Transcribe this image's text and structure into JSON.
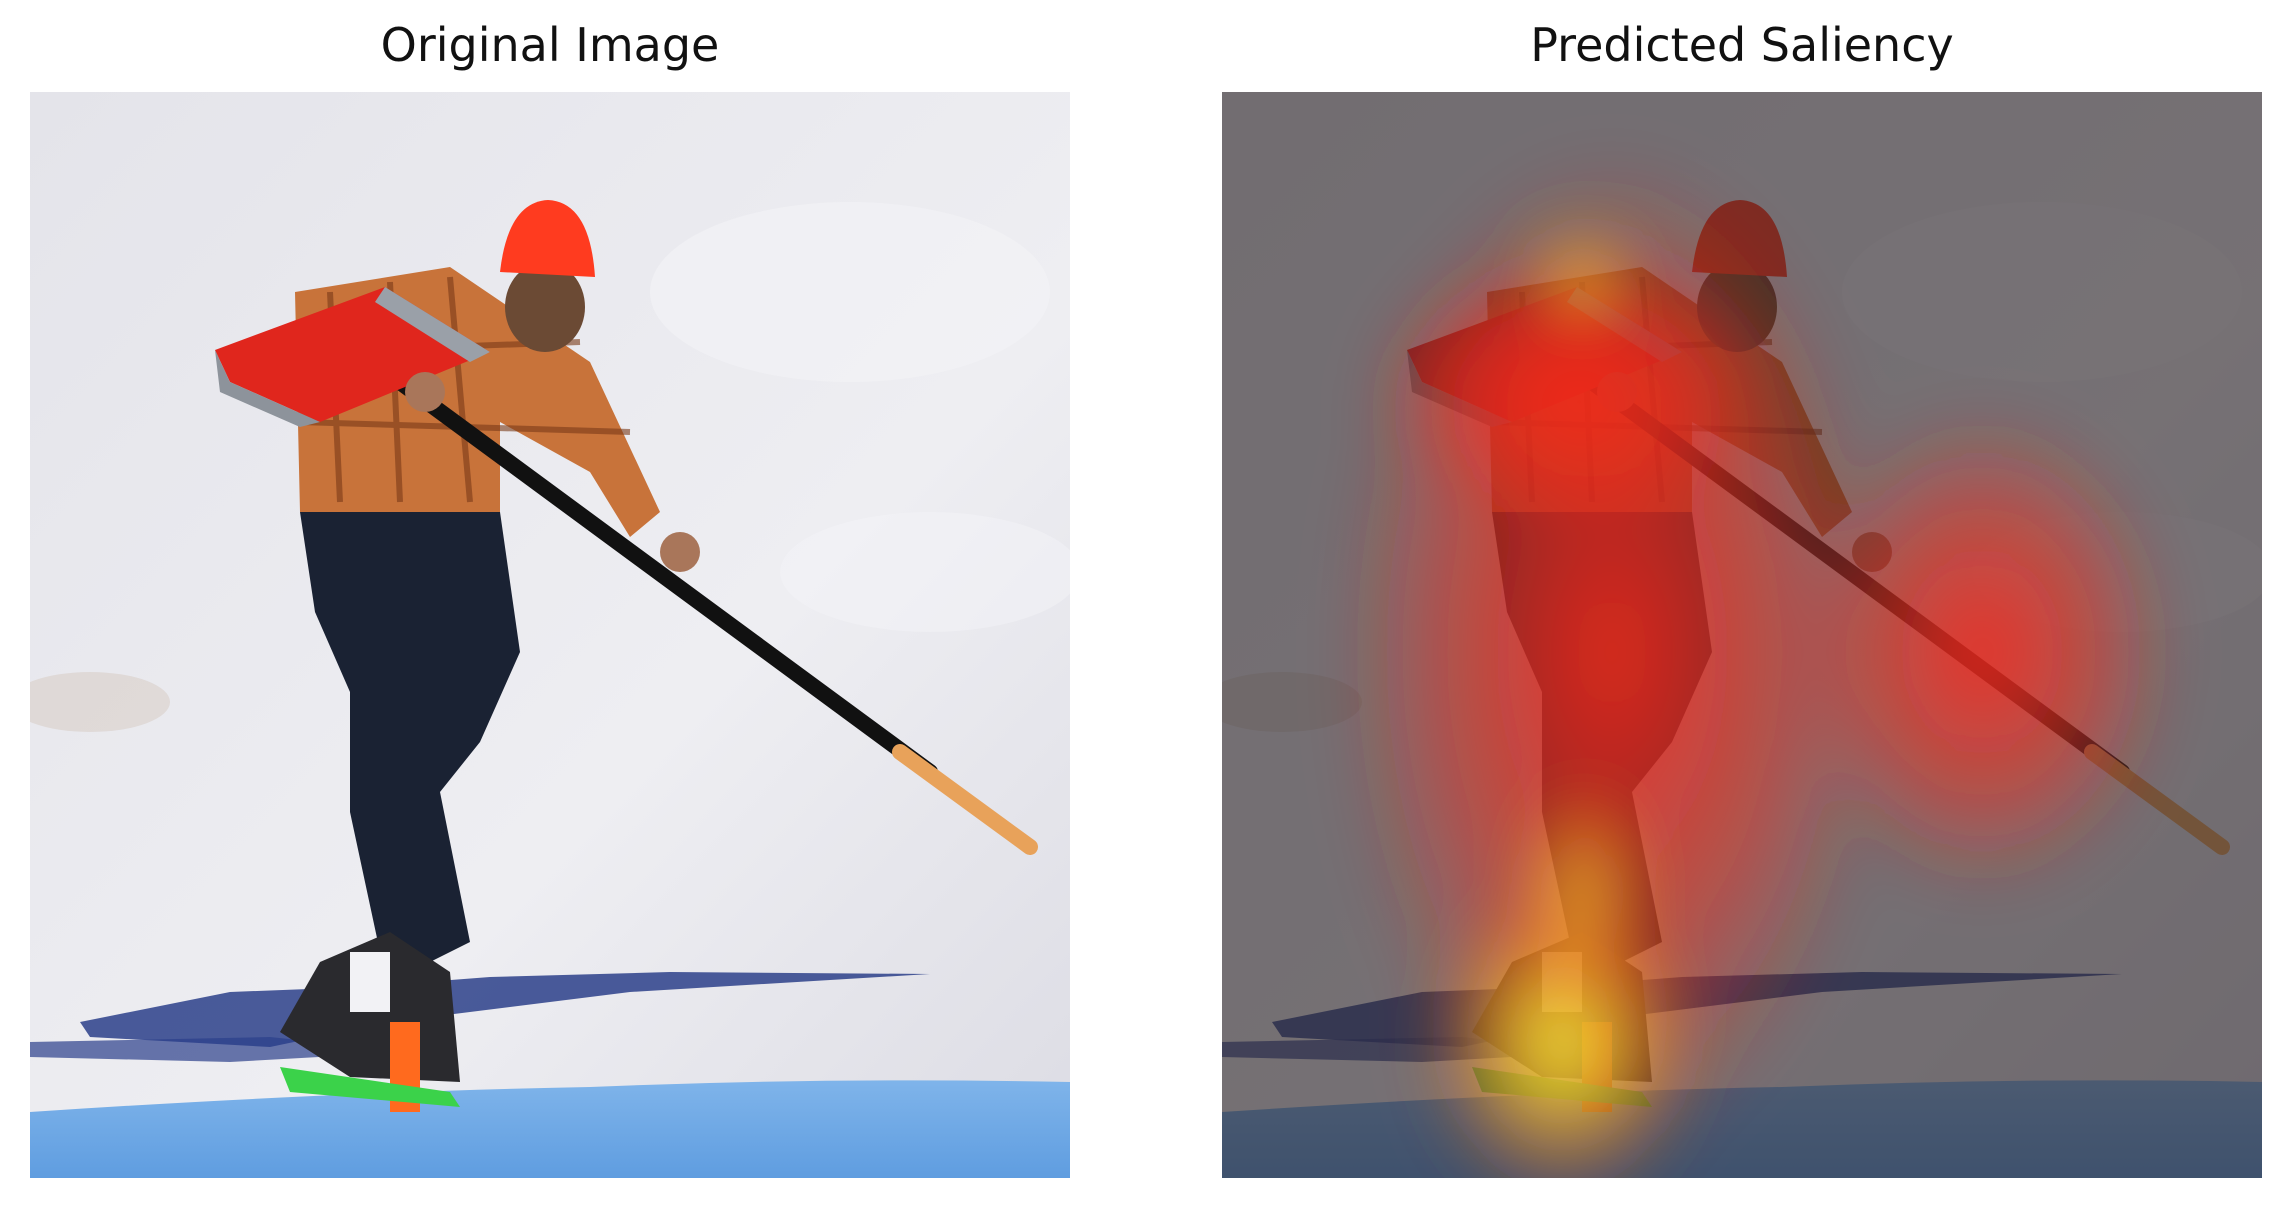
{
  "panels": {
    "left": {
      "title": "Original Image"
    },
    "right": {
      "title": "Predicted Saliency"
    }
  },
  "colors": {
    "snow": "#e9e9ee",
    "hat": "#ff3b1f",
    "shovel": "#e0261d",
    "jeans": "#1a2233",
    "shirt": "#c8733a",
    "saliency_hot": "#ff2a1a",
    "saliency_peak": "#ffff3a",
    "overlay_dark": "#3a3336"
  }
}
